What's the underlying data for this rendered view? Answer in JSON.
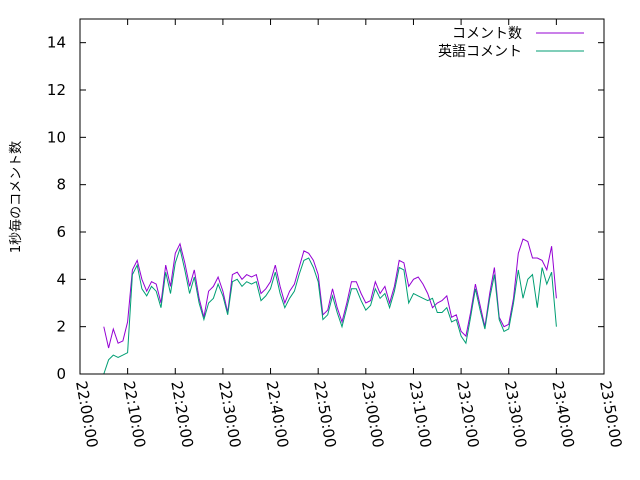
{
  "chart_data": {
    "type": "line",
    "title": "",
    "xlabel": "",
    "ylabel": "1秒毎のコメント数",
    "xlim": [
      "22:00:00",
      "23:50:00"
    ],
    "ylim": [
      0,
      15
    ],
    "yticks": [
      0,
      2,
      4,
      6,
      8,
      10,
      12,
      14
    ],
    "xticks": [
      "22:00:00",
      "22:10:00",
      "22:20:00",
      "22:30:00",
      "22:40:00",
      "22:50:00",
      "23:00:00",
      "23:10:00",
      "23:20:00",
      "23:30:00",
      "23:40:00",
      "23:50:00"
    ],
    "grid": false,
    "legend": "top-right",
    "colors": {
      "series1": "#9400d3",
      "series2": "#009e73"
    },
    "x": [
      "22:05:00",
      "22:06:00",
      "22:07:00",
      "22:08:00",
      "22:09:00",
      "22:10:00",
      "22:11:00",
      "22:12:00",
      "22:13:00",
      "22:14:00",
      "22:15:00",
      "22:16:00",
      "22:17:00",
      "22:18:00",
      "22:19:00",
      "22:20:00",
      "22:21:00",
      "22:22:00",
      "22:23:00",
      "22:24:00",
      "22:25:00",
      "22:26:00",
      "22:27:00",
      "22:28:00",
      "22:29:00",
      "22:30:00",
      "22:31:00",
      "22:32:00",
      "22:33:00",
      "22:34:00",
      "22:35:00",
      "22:36:00",
      "22:37:00",
      "22:38:00",
      "22:39:00",
      "22:40:00",
      "22:41:00",
      "22:42:00",
      "22:43:00",
      "22:44:00",
      "22:45:00",
      "22:46:00",
      "22:47:00",
      "22:48:00",
      "22:49:00",
      "22:50:00",
      "22:51:00",
      "22:52:00",
      "22:53:00",
      "22:54:00",
      "22:55:00",
      "22:56:00",
      "22:57:00",
      "22:58:00",
      "22:59:00",
      "23:00:00",
      "23:01:00",
      "23:02:00",
      "23:03:00",
      "23:04:00",
      "23:05:00",
      "23:06:00",
      "23:07:00",
      "23:08:00",
      "23:09:00",
      "23:10:00",
      "23:11:00",
      "23:12:00",
      "23:13:00",
      "23:14:00",
      "23:15:00",
      "23:16:00",
      "23:17:00",
      "23:18:00",
      "23:19:00",
      "23:20:00",
      "23:21:00",
      "23:22:00",
      "23:23:00",
      "23:24:00",
      "23:25:00",
      "23:26:00",
      "23:27:00",
      "23:28:00",
      "23:29:00",
      "23:30:00",
      "23:31:00",
      "23:32:00",
      "23:33:00",
      "23:34:00",
      "23:35:00",
      "23:36:00",
      "23:37:00",
      "23:38:00",
      "23:39:00",
      "23:40:00"
    ],
    "series": [
      {
        "name": "コメント数",
        "values": [
          2.0,
          1.1,
          1.9,
          1.3,
          1.4,
          2.2,
          4.4,
          4.8,
          4.0,
          3.5,
          3.9,
          3.8,
          3.0,
          4.6,
          3.7,
          5.1,
          5.5,
          4.7,
          3.7,
          4.4,
          3.2,
          2.4,
          3.5,
          3.7,
          4.1,
          3.5,
          2.6,
          4.2,
          4.3,
          4.0,
          4.2,
          4.1,
          4.2,
          3.4,
          3.6,
          3.9,
          4.6,
          3.7,
          3.0,
          3.5,
          3.8,
          4.5,
          5.2,
          5.1,
          4.8,
          4.2,
          2.5,
          2.7,
          3.6,
          2.8,
          2.2,
          3.0,
          3.9,
          3.9,
          3.4,
          3.0,
          3.1,
          3.9,
          3.4,
          3.7,
          3.0,
          3.7,
          4.8,
          4.7,
          3.7,
          4.0,
          4.1,
          3.8,
          3.4,
          2.8,
          3.0,
          3.1,
          3.3,
          2.4,
          2.5,
          1.8,
          1.6,
          2.6,
          3.8,
          2.9,
          2.0,
          3.4,
          4.5,
          2.4,
          2.0,
          2.1,
          3.2,
          5.1,
          5.7,
          5.6,
          4.9,
          4.9,
          4.8,
          4.4,
          5.4,
          3.2
        ]
      },
      {
        "name": "英語コメント",
        "values": [
          0.0,
          0.6,
          0.8,
          0.7,
          0.8,
          0.9,
          4.2,
          4.6,
          3.6,
          3.3,
          3.7,
          3.5,
          2.8,
          4.3,
          3.4,
          4.7,
          5.3,
          4.4,
          3.4,
          4.1,
          3.0,
          2.3,
          3.0,
          3.2,
          3.8,
          3.3,
          2.5,
          3.9,
          4.0,
          3.7,
          3.9,
          3.8,
          3.9,
          3.1,
          3.3,
          3.6,
          4.3,
          3.4,
          2.8,
          3.2,
          3.5,
          4.2,
          4.8,
          4.9,
          4.5,
          3.9,
          2.3,
          2.5,
          3.3,
          2.6,
          2.0,
          2.8,
          3.6,
          3.6,
          3.1,
          2.7,
          2.9,
          3.6,
          3.2,
          3.4,
          2.8,
          3.5,
          4.5,
          4.4,
          3.0,
          3.4,
          3.3,
          3.2,
          3.1,
          3.2,
          2.6,
          2.6,
          2.8,
          2.2,
          2.3,
          1.6,
          1.3,
          2.4,
          3.6,
          2.7,
          1.9,
          3.2,
          4.2,
          2.3,
          1.8,
          1.9,
          3.0,
          4.4,
          3.2,
          4.0,
          4.2,
          2.8,
          4.5,
          3.8,
          4.3,
          2.0
        ]
      }
    ]
  }
}
